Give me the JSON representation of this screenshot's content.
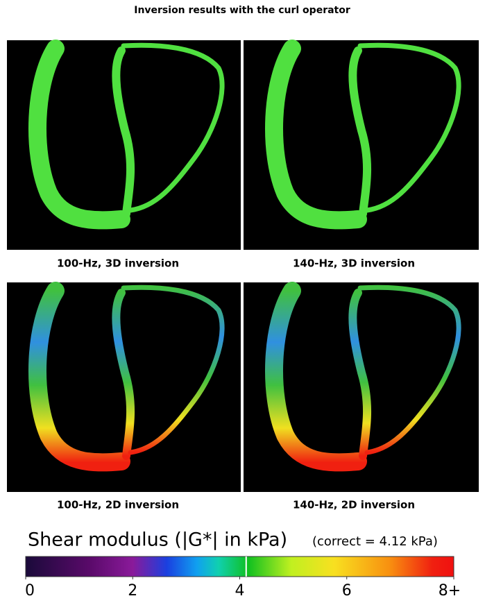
{
  "title": "Inversion results with the curl operator",
  "panels": [
    {
      "label": "100-Hz, 3D inversion"
    },
    {
      "label": "140-Hz, 3D inversion"
    },
    {
      "label": "100-Hz, 2D inversion"
    },
    {
      "label": "140-Hz, 2D inversion"
    }
  ],
  "colorbar": {
    "title": "Shear modulus (|G*| in kPa)",
    "note": "(correct = 4.12 kPa)",
    "lim": [
      0,
      8
    ],
    "ticks": [
      0,
      2,
      4,
      6,
      {
        "value": 8,
        "label": "8+"
      }
    ],
    "marker": 4.12
  }
}
